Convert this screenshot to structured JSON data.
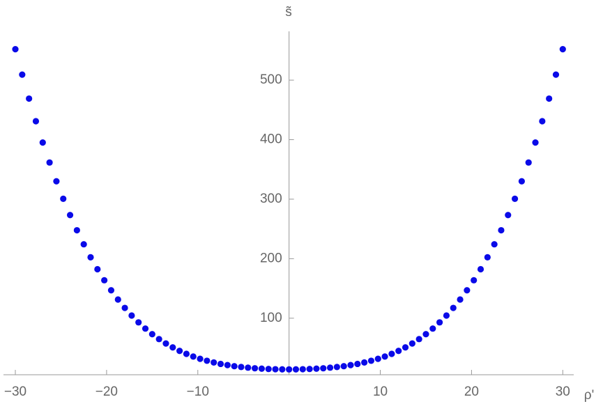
{
  "chart_data": {
    "type": "scatter",
    "x_label": "ρ'",
    "y_label": "s̃",
    "color": "#0a0ae8",
    "xlim": [
      -31.3,
      31.2
    ],
    "ylim": [
      5,
      582
    ],
    "xticks": [
      {
        "value": -30,
        "label": "−30"
      },
      {
        "value": -20,
        "label": "−20"
      },
      {
        "value": -10,
        "label": "−10"
      },
      10,
      20,
      30
    ],
    "yticks": [
      100,
      200,
      300,
      400,
      500
    ],
    "x": [
      -30,
      -29.25,
      -28.5,
      -27.75,
      -27,
      -26.25,
      -25.5,
      -24.75,
      -24,
      -23.25,
      -22.5,
      -21.75,
      -21,
      -20.25,
      -19.5,
      -18.75,
      -18,
      -17.25,
      -16.5,
      -15.75,
      -15,
      -14.25,
      -13.5,
      -12.75,
      -12,
      -11.25,
      -10.5,
      -9.75,
      -9,
      -8.25,
      -7.5,
      -6.75,
      -6,
      -5.25,
      -4.5,
      -3.75,
      -3,
      -2.25,
      -1.5,
      -0.75,
      0,
      0.75,
      1.5,
      2.25,
      3,
      3.75,
      4.5,
      5.25,
      6,
      6.75,
      7.5,
      8.25,
      9,
      9.75,
      10.5,
      11.25,
      12,
      12.75,
      13.5,
      14.25,
      15,
      15.75,
      16.5,
      17.25,
      18,
      18.75,
      19.5,
      20.25,
      21,
      21.75,
      22.5,
      23.25,
      24,
      24.75,
      25.5,
      26.25,
      27,
      27.75,
      28.5,
      29.25,
      30
    ],
    "values": [
      552.0,
      509.3,
      469.0,
      431.0,
      395.2,
      361.6,
      330.1,
      300.7,
      273.3,
      247.8,
      224.2,
      202.4,
      182.3,
      163.8,
      146.9,
      131.4,
      117.3,
      104.5,
      93.0,
      82.6,
      73.2,
      64.9,
      57.5,
      50.9,
      45.1,
      40.1,
      35.6,
      31.8,
      28.5,
      25.6,
      23.2,
      21.2,
      19.4,
      18.0,
      16.9,
      15.9,
      15.2,
      14.7,
      14.3,
      14.1,
      14.0,
      14.1,
      14.3,
      14.7,
      15.2,
      15.9,
      16.9,
      18.0,
      19.4,
      21.2,
      23.2,
      25.6,
      28.5,
      31.8,
      35.6,
      40.1,
      45.1,
      50.9,
      57.5,
      64.9,
      73.2,
      82.6,
      93.0,
      104.5,
      117.3,
      131.4,
      146.9,
      163.8,
      182.3,
      202.4,
      224.2,
      247.8,
      273.3,
      300.7,
      330.1,
      361.6,
      395.2,
      431.0,
      469.0,
      509.3,
      552.0
    ]
  }
}
